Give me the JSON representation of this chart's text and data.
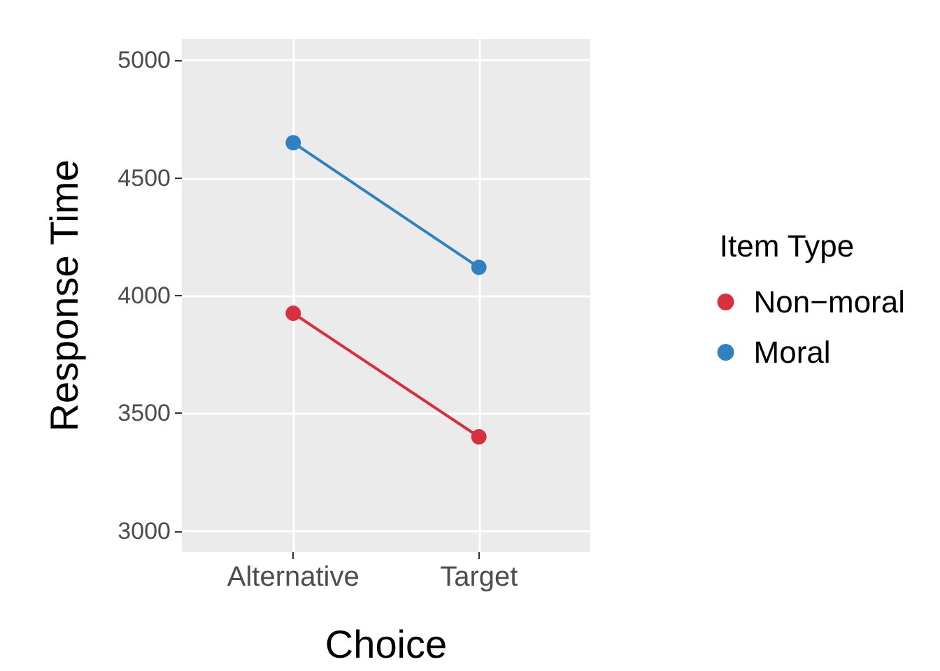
{
  "chart_data": {
    "type": "line",
    "xlabel": "Choice",
    "ylabel": "Response Time",
    "legend_title": "Item Type",
    "categories": [
      "Alternative",
      "Target"
    ],
    "series": [
      {
        "name": "Non−moral",
        "color": "#d7303e",
        "values": [
          3925,
          3400
        ]
      },
      {
        "name": "Moral",
        "color": "#2f81c1",
        "values": [
          4650,
          4120
        ]
      }
    ],
    "ylim": [
      2910,
      5090
    ],
    "yticks": [
      3000,
      3500,
      4000,
      4500,
      5000
    ],
    "grid": true,
    "legend": "right",
    "marker": "circle"
  }
}
